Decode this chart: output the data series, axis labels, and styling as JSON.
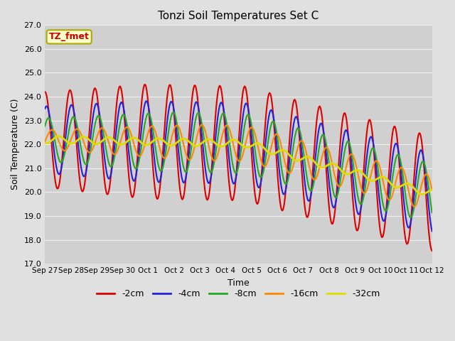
{
  "title": "Tonzi Soil Temperatures Set C",
  "xlabel": "Time",
  "ylabel": "Soil Temperature (C)",
  "ylim": [
    17.0,
    27.0
  ],
  "yticks": [
    17.0,
    18.0,
    19.0,
    20.0,
    21.0,
    22.0,
    23.0,
    24.0,
    25.0,
    26.0,
    27.0
  ],
  "xtick_labels": [
    "Sep 27",
    "Sep 28",
    "Sep 29",
    "Sep 30",
    "Oct 1",
    "Oct 2",
    "Oct 3",
    "Oct 4",
    "Oct 5",
    "Oct 6",
    "Oct 7",
    "Oct 8",
    "Oct 9",
    "Oct 10",
    "Oct 11",
    "Oct 12"
  ],
  "fig_bg_color": "#e0e0e0",
  "plot_bg_color": "#d0d0d0",
  "grid_color": "#f0f0f0",
  "annotation_text": "TZ_fmet",
  "annotation_bg": "#ffffcc",
  "annotation_border": "#aaaa00",
  "annotation_text_color": "#cc0000",
  "legend": [
    "-2cm",
    "-4cm",
    "-8cm",
    "-16cm",
    "-32cm"
  ],
  "line_colors": [
    "#dd0000",
    "#2222dd",
    "#22aa22",
    "#ff8800",
    "#dddd00"
  ],
  "line_widths": [
    1.5,
    1.5,
    1.5,
    1.5,
    2.0
  ],
  "n_points": 480,
  "total_days": 15.5
}
